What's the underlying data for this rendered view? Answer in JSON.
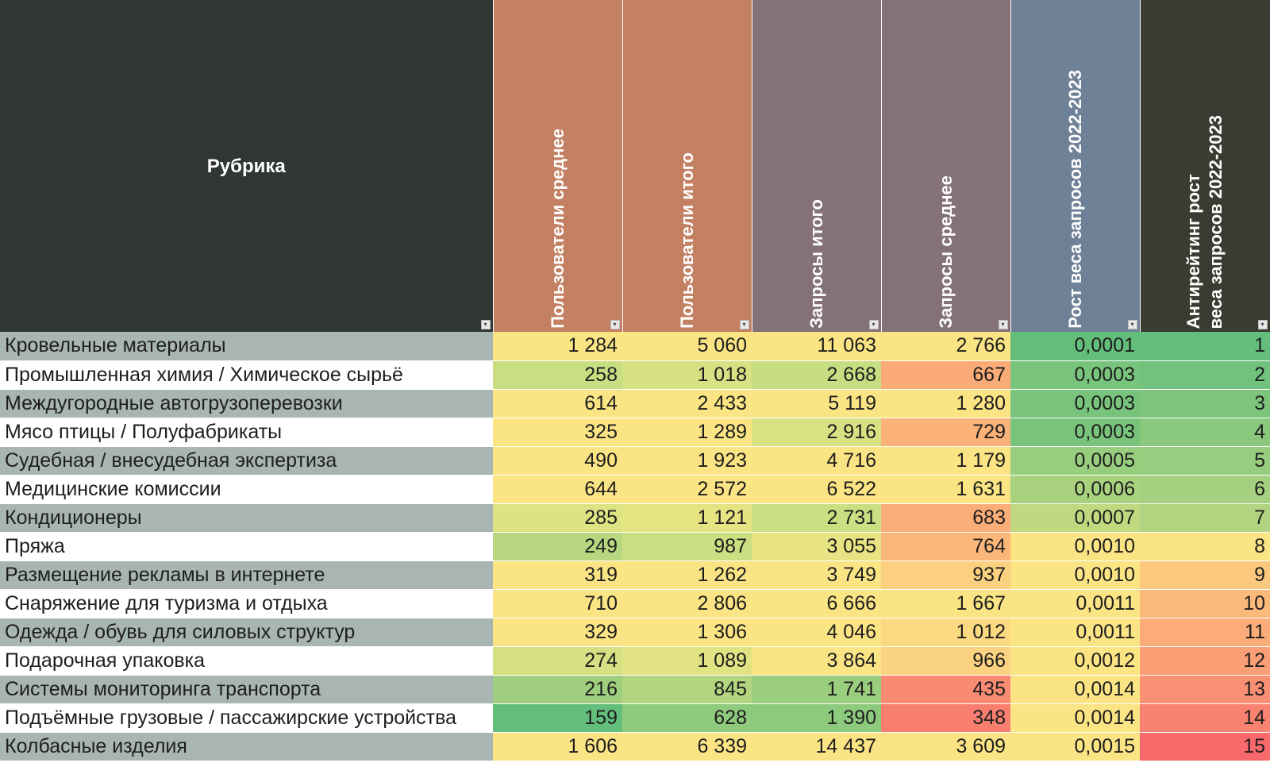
{
  "header": {
    "rubric": "Рубрика",
    "columns": [
      {
        "label": "Пользователи среднее",
        "color": "#c38062"
      },
      {
        "label": "Пользователи итого",
        "color": "#c38062"
      },
      {
        "label": "Запросы итого",
        "color": "#847278"
      },
      {
        "label": "Запросы среднее",
        "color": "#847278"
      },
      {
        "label": "Рост веса запросов 2022-2023",
        "color": "#6f8197"
      },
      {
        "label": "Антирейтинг рост\nвеса запросов 2022-2023",
        "color": "#393d31"
      }
    ],
    "filter_icon": "dropdown-filter-icon"
  },
  "rows": [
    {
      "name": "Кровельные материалы",
      "cells": [
        "1 284",
        "5 060",
        "11 063",
        "2 766",
        "0,0001",
        "1"
      ],
      "colors": [
        "#fbe484",
        "#fbe484",
        "#fbe484",
        "#fbe484",
        "#63be7b",
        "#63be7b"
      ]
    },
    {
      "name": "Промышленная химия / Химическое сырьё",
      "cells": [
        "258",
        "1 018",
        "2 668",
        "667",
        "0,0003",
        "2"
      ],
      "colors": [
        "#c9de83",
        "#d6e183",
        "#c8dd82",
        "#fbab78",
        "#79c47c",
        "#70c27c"
      ]
    },
    {
      "name": "Междугородные автогрузоперевозки",
      "cells": [
        "614",
        "2 433",
        "5 119",
        "1 280",
        "0,0003",
        "3"
      ],
      "colors": [
        "#fbe484",
        "#fbe484",
        "#fbe484",
        "#fbe484",
        "#79c47c",
        "#7dc57d"
      ]
    },
    {
      "name": "Мясо птицы / Полуфабрикаты",
      "cells": [
        "325",
        "1 289",
        "2 916",
        "729",
        "0,0003",
        "4"
      ],
      "colors": [
        "#fbe484",
        "#fbe484",
        "#d9e283",
        "#fbb279",
        "#79c47c",
        "#8ac97d"
      ]
    },
    {
      "name": "Судебная / внесудебная экспертиза",
      "cells": [
        "490",
        "1 923",
        "4 716",
        "1 179",
        "0,0005",
        "5"
      ],
      "colors": [
        "#fbe484",
        "#fbe484",
        "#fbe484",
        "#fbe484",
        "#99cd7e",
        "#97cd7e"
      ]
    },
    {
      "name": "Медицинские комиссии",
      "cells": [
        "644",
        "2 572",
        "6 522",
        "1 631",
        "0,0006",
        "6"
      ],
      "colors": [
        "#fbe484",
        "#fbe484",
        "#fbe484",
        "#fbe484",
        "#a9d27f",
        "#a4d07f"
      ]
    },
    {
      "name": "Кондиционеры",
      "cells": [
        "285",
        "1 121",
        "2 731",
        "683",
        "0,0007",
        "7"
      ],
      "colors": [
        "#dde383",
        "#e6e383",
        "#ccde82",
        "#fbad78",
        "#c0d981",
        "#b1d480"
      ]
    },
    {
      "name": "Пряжа",
      "cells": [
        "249",
        "987",
        "3 055",
        "764",
        "0,0010",
        "8"
      ],
      "colors": [
        "#b7d881",
        "#ccde82",
        "#e8e483",
        "#fbb779",
        "#fbe484",
        "#fbe484"
      ]
    },
    {
      "name": "Размещение рекламы в интернете",
      "cells": [
        "319",
        "1 262",
        "3 749",
        "937",
        "0,0010",
        "9"
      ],
      "colors": [
        "#fbe484",
        "#fbe484",
        "#fbe484",
        "#fbd07f",
        "#fbe484",
        "#fbc87d"
      ]
    },
    {
      "name": "Снаряжение для туризма и отдыха",
      "cells": [
        "710",
        "2 806",
        "6 666",
        "1 667",
        "0,0011",
        "10"
      ],
      "colors": [
        "#fbe484",
        "#fbe484",
        "#fbe484",
        "#fbe484",
        "#fbe484",
        "#fbba7a"
      ]
    },
    {
      "name": "Одежда / обувь для силовых структур",
      "cells": [
        "329",
        "1 306",
        "4 046",
        "1 012",
        "0,0011",
        "11"
      ],
      "colors": [
        "#fbe484",
        "#fbe484",
        "#fbe484",
        "#fbd980",
        "#fbe484",
        "#fbac78"
      ]
    },
    {
      "name": "Подарочная упаковка",
      "cells": [
        "274",
        "1 089",
        "3 864",
        "966",
        "0,0012",
        "12"
      ],
      "colors": [
        "#d6e183",
        "#e1e383",
        "#fbe484",
        "#fbd27f",
        "#fbe484",
        "#fa9e75"
      ]
    },
    {
      "name": "Системы мониторинга транспорта",
      "cells": [
        "216",
        "845",
        "1 741",
        "435",
        "0,0014",
        "13"
      ],
      "colors": [
        "#9fcf7e",
        "#b3d580",
        "#9acd7e",
        "#f98b72",
        "#fbe484",
        "#f99073"
      ]
    },
    {
      "name": "Подъёмные грузовые / пассажирские устройства",
      "cells": [
        "159",
        "628",
        "1 390",
        "348",
        "0,0014",
        "14"
      ],
      "colors": [
        "#63be7b",
        "#8fca7d",
        "#8dca7d",
        "#f87f6f",
        "#fbe484",
        "#f98270"
      ]
    },
    {
      "name": "Колбасные изделия",
      "cells": [
        "1 606",
        "6 339",
        "14 437",
        "3 609",
        "0,0015",
        "15"
      ],
      "colors": [
        "#fbe484",
        "#fbe484",
        "#fbe484",
        "#fbe484",
        "#fbe484",
        "#f8696b"
      ]
    }
  ]
}
